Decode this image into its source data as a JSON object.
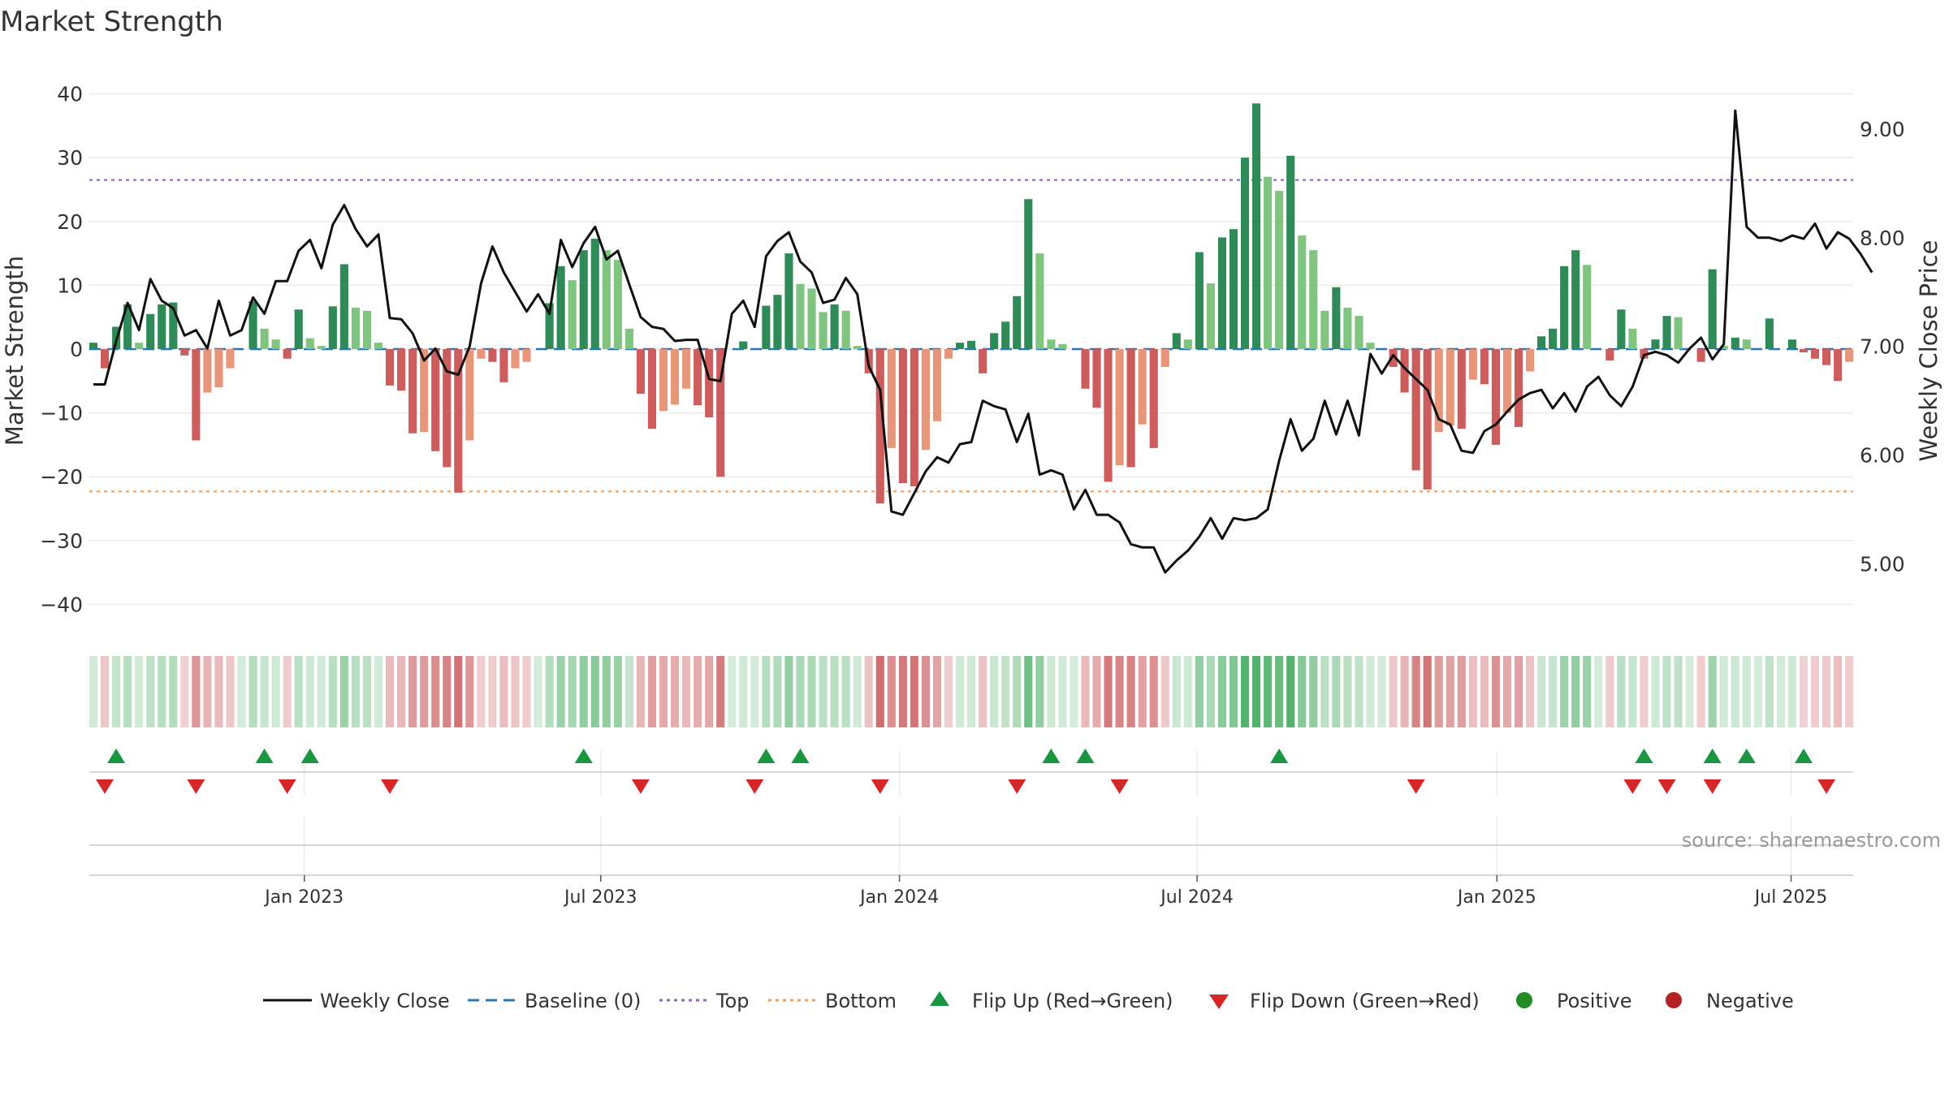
{
  "chart_data": {
    "type": "bar",
    "title": "Market Strength",
    "ylabel": "Market Strength",
    "y2label": "Weekly Close Price",
    "ylim": [
      -43,
      43
    ],
    "y2lim": [
      4.45,
      9.5
    ],
    "yticks": [
      40,
      30,
      20,
      10,
      0,
      -10,
      -20,
      -30,
      -40
    ],
    "ytick_labels": [
      "40",
      "30",
      "20",
      "10",
      "0",
      "−10",
      "−20",
      "−30",
      "−40"
    ],
    "y2ticks": [
      9.0,
      8.0,
      7.0,
      6.0,
      5.0
    ],
    "y2tick_labels": [
      "9.00",
      "8.00",
      "7.00",
      "6.00",
      "5.00"
    ],
    "top_line": 26.5,
    "bottom_line": -22.3,
    "xticks": [
      {
        "week": 18.5,
        "label": "Jan 2023"
      },
      {
        "week": 44.5,
        "label": "Jul 2023"
      },
      {
        "week": 70.7,
        "label": "Jan 2024"
      },
      {
        "week": 96.8,
        "label": "Jul 2024"
      },
      {
        "week": 123.1,
        "label": "Jan 2025"
      },
      {
        "week": 148.9,
        "label": "Jul 2025"
      }
    ],
    "strength": [
      1,
      -3,
      3.5,
      7,
      1,
      5.5,
      7,
      7.3,
      -1,
      -14.3,
      -6.8,
      -6,
      -3,
      0,
      7.5,
      3.2,
      1.5,
      -1.5,
      6.2,
      1.7,
      0.5,
      6.7,
      13.3,
      6.5,
      6,
      1,
      -5.7,
      -6.5,
      -13.2,
      -13,
      -16,
      -18.5,
      -22.5,
      -14.3,
      -1.5,
      -2,
      -5.2,
      -3,
      -2,
      0,
      7.2,
      13,
      10.8,
      15.5,
      17.3,
      15.5,
      14,
      3.2,
      -7,
      -12.5,
      -9.7,
      -8.7,
      -6.2,
      -8.8,
      -10.7,
      -20,
      0,
      1.2,
      0,
      6.8,
      8.5,
      15,
      10.2,
      9.5,
      5.8,
      7,
      6,
      0.5,
      -3.8,
      -24.2,
      -15.5,
      -21,
      -21.5,
      -15.8,
      -11.3,
      -1.5,
      1,
      1.3,
      -3.8,
      2.5,
      4.3,
      8.3,
      23.5,
      15,
      1.5,
      0.8,
      0,
      -6.2,
      -9.2,
      -20.8,
      -18.2,
      -18.5,
      -11.8,
      -15.5,
      -2.8,
      2.5,
      1.5,
      15.2,
      10.3,
      17.5,
      18.8,
      30,
      38.5,
      27,
      24.8,
      30.3,
      17.8,
      15.5,
      6,
      9.7,
      6.5,
      5.2,
      1,
      0,
      -2.8,
      -6.8,
      -19,
      -22,
      -13,
      -12,
      -12.5,
      -4.8,
      -5.5,
      -15,
      -10,
      -12.2,
      -3.5,
      2,
      3.2,
      13,
      15.5,
      13.2,
      0,
      -1.8,
      6.2,
      3.2,
      -1.5,
      1.5,
      5.2,
      5,
      0,
      -2,
      12.5,
      0.5,
      1.8,
      1.5,
      0,
      4.8,
      0,
      1.5,
      -0.5,
      -1.5,
      -2.5,
      -5,
      -2
    ],
    "close": [
      6.65,
      6.65,
      7.05,
      7.4,
      7.15,
      7.62,
      7.42,
      7.35,
      7.1,
      7.15,
      6.98,
      7.42,
      7.1,
      7.15,
      7.45,
      7.3,
      7.6,
      7.6,
      7.88,
      7.98,
      7.72,
      8.12,
      8.3,
      8.08,
      7.92,
      8.03,
      7.26,
      7.25,
      7.12,
      6.87,
      6.98,
      6.77,
      6.74,
      7.0,
      7.58,
      7.92,
      7.68,
      7.5,
      7.32,
      7.48,
      7.3,
      7.98,
      7.73,
      7.95,
      8.1,
      7.8,
      7.88,
      7.57,
      7.27,
      7.18,
      7.16,
      7.05,
      7.06,
      7.06,
      6.7,
      6.68,
      7.3,
      7.42,
      7.18,
      7.83,
      7.97,
      8.05,
      7.78,
      7.68,
      7.4,
      7.43,
      7.63,
      7.48,
      6.82,
      6.6,
      5.48,
      5.45,
      5.65,
      5.85,
      5.98,
      5.93,
      6.1,
      6.12,
      6.5,
      6.45,
      6.42,
      6.12,
      6.38,
      5.82,
      5.86,
      5.82,
      5.5,
      5.68,
      5.45,
      5.45,
      5.38,
      5.18,
      5.15,
      5.15,
      4.92,
      5.03,
      5.12,
      5.25,
      5.42,
      5.23,
      5.42,
      5.4,
      5.42,
      5.5,
      5.95,
      6.33,
      6.04,
      6.15,
      6.5,
      6.19,
      6.5,
      6.18,
      6.93,
      6.75,
      6.92,
      6.8,
      6.7,
      6.6,
      6.33,
      6.28,
      6.04,
      6.02,
      6.22,
      6.28,
      6.4,
      6.51,
      6.57,
      6.6,
      6.43,
      6.57,
      6.4,
      6.63,
      6.72,
      6.55,
      6.45,
      6.63,
      6.92,
      6.95,
      6.92,
      6.85,
      6.98,
      7.08,
      6.88,
      7.02,
      9.17,
      8.1,
      8.0,
      8.0,
      7.97,
      8.02,
      7.99,
      8.13,
      7.9,
      8.05,
      7.99,
      7.85,
      7.68
    ],
    "flip_up_weeks": [
      2,
      15,
      19,
      43,
      59,
      62,
      84,
      87,
      104,
      136,
      142,
      145,
      150
    ],
    "flip_down_weeks": [
      1,
      9,
      17,
      26,
      48,
      58,
      69,
      81,
      90,
      116,
      135,
      138,
      142,
      152
    ],
    "legend": {
      "weekly_close": "Weekly Close",
      "baseline": "Baseline (0)",
      "top": "Top",
      "bottom": "Bottom",
      "flip_up": "Flip Up (Red→Green)",
      "flip_down": "Flip Down (Green→Red)",
      "positive": "Positive",
      "negative": "Negative"
    },
    "source": "source: sharemaestro.com",
    "colors": {
      "pos_strong": "#2e8b57",
      "pos_light": "#7fc47f",
      "neg_strong": "#cd5c5c",
      "neg_light": "#e8967a",
      "close": "#111111",
      "baseline": "#2a77b4",
      "top": "#9467bd",
      "bottom": "#f0a060",
      "flip_up": "#1a9641",
      "flip_down": "#d62728",
      "positive": "#228b22",
      "negative": "#b22222"
    }
  }
}
